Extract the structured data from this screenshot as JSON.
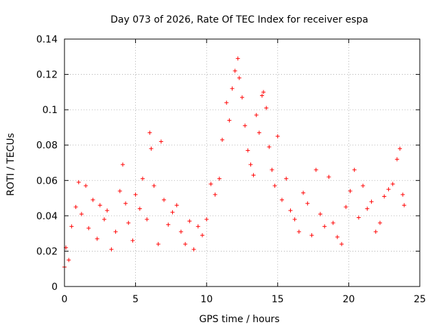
{
  "chart_data": {
    "type": "scatter",
    "title": "Day 073 of 2026, Rate Of TEC Index for receiver espa",
    "xlabel": "GPS time / hours",
    "ylabel": "ROTI / TECUs",
    "xlim": [
      0,
      25
    ],
    "ylim": [
      0,
      0.14
    ],
    "x_ticks": [
      0,
      5,
      10,
      15,
      20,
      25
    ],
    "x_tick_labels": [
      "0",
      "5",
      "10",
      "15",
      "20",
      "25"
    ],
    "y_ticks": [
      0,
      0.02,
      0.04,
      0.06,
      0.08,
      0.1,
      0.12,
      0.14
    ],
    "y_tick_labels": [
      "0",
      "0.02",
      "0.04",
      "0.06",
      "0.08",
      "0.1",
      "0.12",
      "0.14"
    ],
    "grid": true,
    "marker": "+",
    "series": [
      {
        "name": "ROTI",
        "color": "#ff0000",
        "x": [
          0.0,
          0.1,
          0.3,
          0.5,
          0.8,
          1.0,
          1.2,
          1.5,
          1.7,
          2.0,
          2.3,
          2.5,
          2.8,
          3.0,
          3.3,
          3.6,
          3.9,
          4.1,
          4.3,
          4.5,
          4.8,
          5.0,
          5.3,
          5.5,
          5.8,
          6.0,
          6.1,
          6.3,
          6.6,
          6.8,
          7.0,
          7.3,
          7.6,
          7.9,
          8.2,
          8.5,
          8.8,
          9.1,
          9.4,
          9.7,
          10.0,
          10.3,
          10.6,
          10.9,
          11.1,
          11.4,
          11.6,
          11.8,
          12.0,
          12.2,
          12.3,
          12.5,
          12.7,
          12.9,
          13.1,
          13.3,
          13.5,
          13.7,
          13.9,
          14.0,
          14.2,
          14.4,
          14.6,
          14.8,
          15.0,
          15.3,
          15.6,
          15.9,
          16.2,
          16.5,
          16.8,
          17.1,
          17.4,
          17.7,
          18.0,
          18.3,
          18.6,
          18.9,
          19.2,
          19.5,
          19.8,
          20.1,
          20.4,
          20.7,
          21.0,
          21.3,
          21.6,
          21.9,
          22.2,
          22.5,
          22.8,
          23.1,
          23.4,
          23.6,
          23.8,
          23.9
        ],
        "y": [
          0.011,
          0.022,
          0.015,
          0.034,
          0.045,
          0.059,
          0.041,
          0.057,
          0.033,
          0.049,
          0.027,
          0.046,
          0.038,
          0.043,
          0.021,
          0.031,
          0.054,
          0.069,
          0.047,
          0.036,
          0.026,
          0.052,
          0.044,
          0.061,
          0.038,
          0.087,
          0.078,
          0.057,
          0.024,
          0.082,
          0.049,
          0.035,
          0.042,
          0.046,
          0.031,
          0.024,
          0.037,
          0.021,
          0.034,
          0.029,
          0.038,
          0.058,
          0.052,
          0.061,
          0.083,
          0.104,
          0.094,
          0.112,
          0.122,
          0.129,
          0.118,
          0.107,
          0.091,
          0.077,
          0.069,
          0.063,
          0.097,
          0.087,
          0.108,
          0.11,
          0.101,
          0.079,
          0.066,
          0.057,
          0.085,
          0.049,
          0.061,
          0.043,
          0.038,
          0.031,
          0.053,
          0.047,
          0.029,
          0.066,
          0.041,
          0.034,
          0.062,
          0.036,
          0.028,
          0.024,
          0.045,
          0.054,
          0.066,
          0.039,
          0.057,
          0.044,
          0.048,
          0.031,
          0.036,
          0.051,
          0.055,
          0.058,
          0.072,
          0.078,
          0.052,
          0.046
        ]
      }
    ]
  }
}
